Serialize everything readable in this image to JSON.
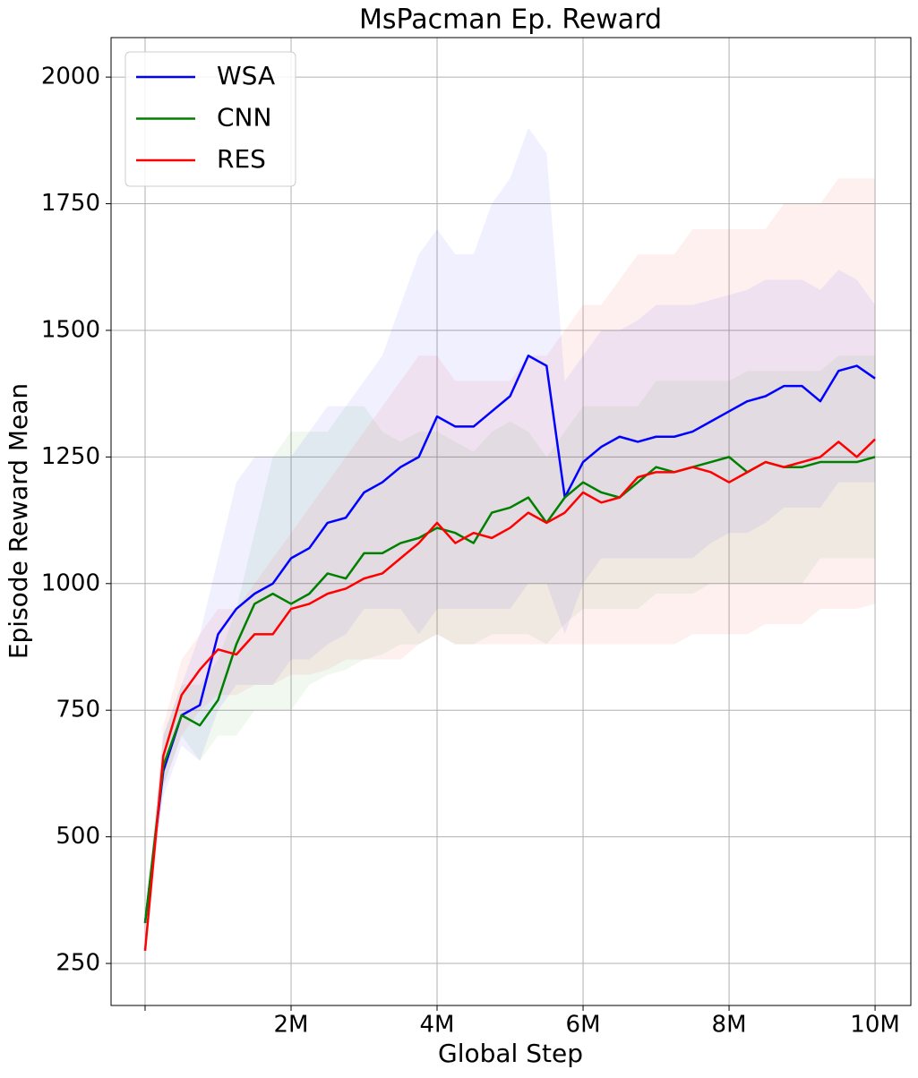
{
  "chart_data": {
    "type": "line",
    "title": "MsPacman Ep. Reward",
    "x_label": "Global Step",
    "y_label": "Episode Reward Mean",
    "x": [
      0,
      250000,
      500000,
      750000,
      1000000,
      1250000,
      1500000,
      1750000,
      2000000,
      2250000,
      2500000,
      2750000,
      3000000,
      3250000,
      3500000,
      3750000,
      4000000,
      4250000,
      4500000,
      4750000,
      5000000,
      5250000,
      5500000,
      5750000,
      6000000,
      6250000,
      6500000,
      6750000,
      7000000,
      7250000,
      7500000,
      7750000,
      8000000,
      8250000,
      8500000,
      8750000,
      9000000,
      9250000,
      9500000,
      9750000,
      10000000
    ],
    "series": [
      {
        "name": "WSA",
        "color": "#0000ff",
        "values": [
          330,
          630,
          740,
          760,
          900,
          950,
          980,
          1000,
          1050,
          1070,
          1120,
          1130,
          1180,
          1200,
          1230,
          1250,
          1330,
          1310,
          1310,
          1340,
          1370,
          1450,
          1430,
          1170,
          1240,
          1270,
          1290,
          1280,
          1290,
          1290,
          1300,
          1320,
          1340,
          1360,
          1370,
          1390,
          1390,
          1360,
          1420,
          1430,
          1405
        ],
        "upper": [
          340,
          700,
          800,
          900,
          1050,
          1200,
          1250,
          1250,
          1250,
          1300,
          1350,
          1350,
          1400,
          1450,
          1550,
          1650,
          1700,
          1650,
          1650,
          1750,
          1800,
          1900,
          1850,
          1400,
          1450,
          1500,
          1500,
          1520,
          1550,
          1550,
          1550,
          1560,
          1570,
          1580,
          1600,
          1600,
          1600,
          1580,
          1620,
          1600,
          1550
        ],
        "lower": [
          320,
          580,
          680,
          650,
          750,
          800,
          800,
          800,
          850,
          850,
          880,
          900,
          950,
          950,
          950,
          900,
          950,
          950,
          950,
          950,
          950,
          1000,
          1000,
          900,
          1000,
          1050,
          1050,
          1050,
          1050,
          1050,
          1050,
          1080,
          1100,
          1100,
          1120,
          1150,
          1150,
          1150,
          1200,
          1200,
          1200
        ]
      },
      {
        "name": "CNN",
        "color": "#008000",
        "values": [
          330,
          640,
          740,
          720,
          770,
          880,
          960,
          980,
          960,
          980,
          1020,
          1010,
          1060,
          1060,
          1080,
          1090,
          1110,
          1100,
          1080,
          1140,
          1150,
          1170,
          1120,
          1170,
          1200,
          1180,
          1170,
          1200,
          1230,
          1220,
          1230,
          1240,
          1250,
          1220,
          1240,
          1230,
          1230,
          1240,
          1240,
          1240,
          1250
        ],
        "upper": [
          340,
          700,
          800,
          800,
          850,
          950,
          1100,
          1250,
          1300,
          1300,
          1300,
          1350,
          1350,
          1300,
          1280,
          1300,
          1300,
          1280,
          1260,
          1300,
          1320,
          1300,
          1250,
          1300,
          1350,
          1350,
          1350,
          1350,
          1400,
          1400,
          1400,
          1400,
          1400,
          1420,
          1420,
          1420,
          1420,
          1420,
          1450,
          1450,
          1450
        ],
        "lower": [
          320,
          600,
          700,
          650,
          700,
          700,
          750,
          750,
          750,
          800,
          820,
          830,
          850,
          860,
          880,
          880,
          900,
          880,
          880,
          900,
          900,
          900,
          880,
          920,
          950,
          950,
          950,
          950,
          980,
          980,
          980,
          1000,
          1000,
          1000,
          1000,
          1000,
          1000,
          1050,
          1050,
          1050,
          1050
        ]
      },
      {
        "name": "RES",
        "color": "#ff0000",
        "values": [
          275,
          660,
          780,
          830,
          870,
          860,
          900,
          900,
          950,
          960,
          980,
          990,
          1010,
          1020,
          1050,
          1080,
          1120,
          1080,
          1100,
          1090,
          1110,
          1140,
          1120,
          1140,
          1180,
          1160,
          1170,
          1210,
          1220,
          1220,
          1230,
          1220,
          1200,
          1220,
          1240,
          1230,
          1240,
          1250,
          1280,
          1250,
          1285
        ],
        "upper": [
          290,
          720,
          850,
          900,
          950,
          950,
          1000,
          1050,
          1100,
          1150,
          1200,
          1250,
          1300,
          1350,
          1400,
          1450,
          1450,
          1400,
          1400,
          1400,
          1400,
          1450,
          1450,
          1500,
          1550,
          1550,
          1600,
          1650,
          1650,
          1650,
          1700,
          1700,
          1700,
          1700,
          1700,
          1750,
          1750,
          1750,
          1800,
          1800,
          1800
        ],
        "lower": [
          260,
          600,
          700,
          750,
          780,
          780,
          800,
          800,
          820,
          820,
          830,
          850,
          850,
          850,
          850,
          880,
          900,
          880,
          880,
          880,
          880,
          880,
          880,
          880,
          880,
          880,
          880,
          880,
          880,
          880,
          900,
          900,
          900,
          900,
          920,
          920,
          920,
          950,
          950,
          950,
          960
        ]
      }
    ],
    "xlim": [
      -466000,
      10490000
    ],
    "ylim": [
      167,
      2078
    ],
    "xticks": [
      {
        "value": 0,
        "label": null
      },
      {
        "value": 2000000,
        "label": "2M"
      },
      {
        "value": 4000000,
        "label": "4M"
      },
      {
        "value": 6000000,
        "label": "6M"
      },
      {
        "value": 8000000,
        "label": "8M"
      },
      {
        "value": 10000000,
        "label": "10M"
      }
    ],
    "yticks": [
      250,
      500,
      750,
      1000,
      1250,
      1500,
      1750,
      2000
    ],
    "grid": true,
    "legend": "upper left",
    "band_opacity": 0.06
  }
}
